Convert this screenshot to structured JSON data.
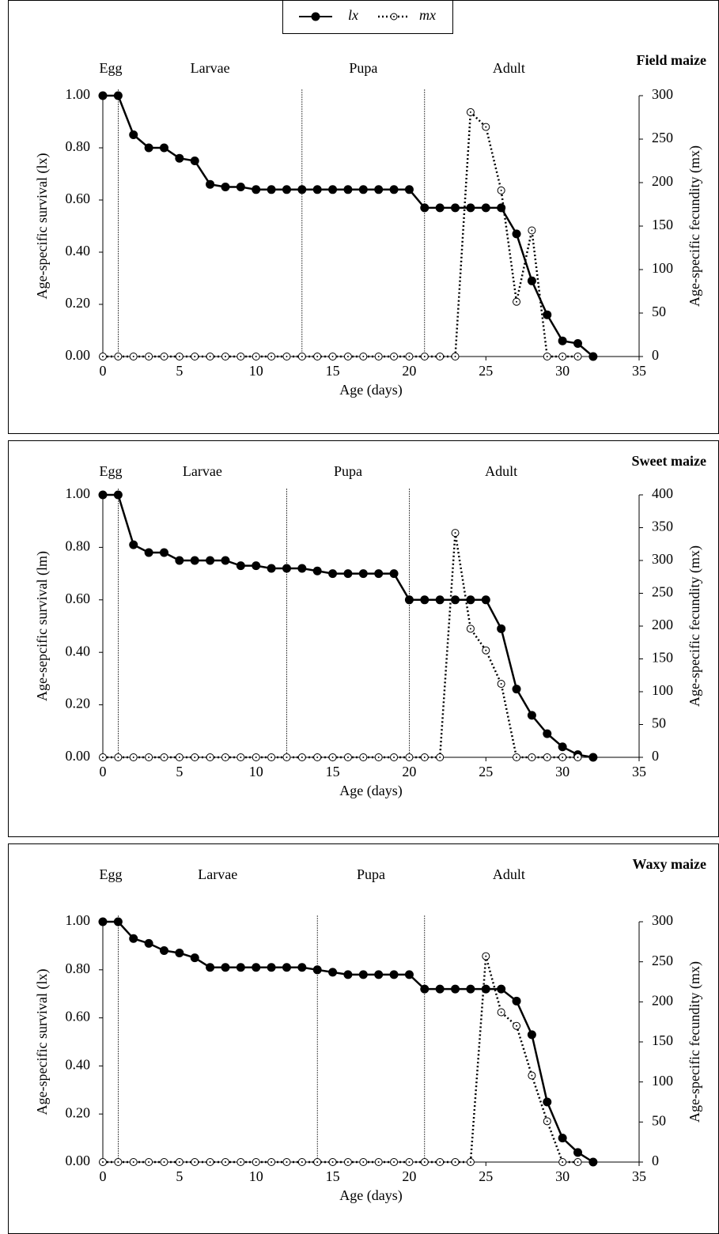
{
  "chart_data": [
    {
      "type": "line",
      "title": "Field maize",
      "xlabel": "Age (days)",
      "ylabel": "Age-specific survival (lx)",
      "y2label": "Age-specific fecundity (mx)",
      "stages": [
        "Egg",
        "Larvae",
        "Pupa",
        "Adult"
      ],
      "stage_boundaries": [
        1,
        13,
        21
      ],
      "xlim": [
        0,
        35
      ],
      "xticks": [
        0,
        5,
        10,
        15,
        20,
        25,
        30,
        35
      ],
      "ylim": [
        0,
        1
      ],
      "yticks": [
        {
          "value": 0,
          "label": "0.00"
        },
        {
          "value": 0.2,
          "label": "0.20"
        },
        {
          "value": 0.4,
          "label": "0.40"
        },
        {
          "value": 0.6,
          "label": "0.60"
        },
        {
          "value": 0.8,
          "label": "0.80"
        },
        {
          "value": 1,
          "label": "1.00"
        }
      ],
      "y2lim": [
        0,
        300
      ],
      "y2ticks": [
        0,
        50,
        100,
        150,
        200,
        250,
        300
      ],
      "series": [
        {
          "name": "lx",
          "color": "#000000",
          "x": [
            0,
            1,
            2,
            3,
            4,
            5,
            6,
            7,
            8,
            9,
            10,
            11,
            12,
            13,
            14,
            15,
            16,
            17,
            18,
            19,
            20,
            21,
            22,
            23,
            24,
            25,
            26,
            27,
            28,
            29,
            30,
            31,
            32
          ],
          "values": [
            1,
            1,
            0.85,
            0.8,
            0.8,
            0.76,
            0.75,
            0.66,
            0.65,
            0.65,
            0.64,
            0.64,
            0.64,
            0.64,
            0.64,
            0.64,
            0.64,
            0.64,
            0.64,
            0.64,
            0.64,
            0.57,
            0.57,
            0.57,
            0.57,
            0.57,
            0.57,
            0.47,
            0.29,
            0.16,
            0.06,
            0.05,
            0
          ]
        },
        {
          "name": "mx",
          "color": "#000000",
          "axis": "y2",
          "x": [
            0,
            1,
            2,
            3,
            4,
            5,
            6,
            7,
            8,
            9,
            10,
            11,
            12,
            13,
            14,
            15,
            16,
            17,
            18,
            19,
            20,
            21,
            22,
            23,
            24,
            25,
            26,
            27,
            28,
            29,
            30,
            31
          ],
          "values": [
            0,
            0,
            0,
            0,
            0,
            0,
            0,
            0,
            0,
            0,
            0,
            0,
            0,
            0,
            0,
            0,
            0,
            0,
            0,
            0,
            0,
            0,
            0,
            0,
            281,
            264,
            191,
            63,
            145,
            0,
            0,
            0
          ]
        }
      ]
    },
    {
      "type": "line",
      "title": "Sweet maize",
      "xlabel": "Age (days)",
      "ylabel": "Age-sepcific survival (lm)",
      "y2label": "Age-specific fecundity (mx)",
      "stages": [
        "Egg",
        "Larvae",
        "Pupa",
        "Adult"
      ],
      "stage_boundaries": [
        1,
        12,
        20
      ],
      "xlim": [
        0,
        35
      ],
      "xticks": [
        0,
        5,
        10,
        15,
        20,
        25,
        30,
        35
      ],
      "ylim": [
        0,
        1
      ],
      "yticks": [
        {
          "value": 0,
          "label": "0.00"
        },
        {
          "value": 0.2,
          "label": "0.20"
        },
        {
          "value": 0.4,
          "label": "0.40"
        },
        {
          "value": 0.6,
          "label": "0.60"
        },
        {
          "value": 0.8,
          "label": "0.80"
        },
        {
          "value": 1,
          "label": "1.00"
        }
      ],
      "y2lim": [
        0,
        400
      ],
      "y2ticks": [
        0,
        50,
        100,
        150,
        200,
        250,
        300,
        350,
        400
      ],
      "series": [
        {
          "name": "lx",
          "color": "#000000",
          "x": [
            0,
            1,
            2,
            3,
            4,
            5,
            6,
            7,
            8,
            9,
            10,
            11,
            12,
            13,
            14,
            15,
            16,
            17,
            18,
            19,
            20,
            21,
            22,
            23,
            24,
            25,
            26,
            27,
            28,
            29,
            30,
            31,
            32
          ],
          "values": [
            1,
            1,
            0.81,
            0.78,
            0.78,
            0.75,
            0.75,
            0.75,
            0.75,
            0.73,
            0.73,
            0.72,
            0.72,
            0.72,
            0.71,
            0.7,
            0.7,
            0.7,
            0.7,
            0.7,
            0.6,
            0.6,
            0.6,
            0.6,
            0.6,
            0.6,
            0.49,
            0.26,
            0.16,
            0.09,
            0.04,
            0.01,
            0
          ]
        },
        {
          "name": "mx",
          "color": "#000000",
          "axis": "y2",
          "x": [
            0,
            1,
            2,
            3,
            4,
            5,
            6,
            7,
            8,
            9,
            10,
            11,
            12,
            13,
            14,
            15,
            16,
            17,
            18,
            19,
            20,
            21,
            22,
            23,
            24,
            25,
            26,
            27,
            28,
            29,
            30,
            31
          ],
          "values": [
            0,
            0,
            0,
            0,
            0,
            0,
            0,
            0,
            0,
            0,
            0,
            0,
            0,
            0,
            0,
            0,
            0,
            0,
            0,
            0,
            0,
            0,
            0,
            342,
            196,
            163,
            112,
            0,
            0,
            0,
            0,
            0
          ]
        }
      ]
    },
    {
      "type": "line",
      "title": "Waxy maize",
      "xlabel": "Age (days)",
      "ylabel": "Age-specific survival (lx)",
      "y2label": "Age-specific fecundity (mx)",
      "stages": [
        "Egg",
        "Larvae",
        "Pupa",
        "Adult"
      ],
      "stage_boundaries": [
        1,
        14,
        21
      ],
      "xlim": [
        0,
        35
      ],
      "xticks": [
        0,
        5,
        10,
        15,
        20,
        25,
        30,
        35
      ],
      "ylim": [
        0,
        1
      ],
      "yticks": [
        {
          "value": 0,
          "label": "0.00"
        },
        {
          "value": 0.2,
          "label": "0.20"
        },
        {
          "value": 0.4,
          "label": "0.40"
        },
        {
          "value": 0.6,
          "label": "0.60"
        },
        {
          "value": 0.8,
          "label": "0.80"
        },
        {
          "value": 1,
          "label": "1.00"
        }
      ],
      "y2lim": [
        0,
        300
      ],
      "y2ticks": [
        0,
        50,
        100,
        150,
        200,
        250,
        300
      ],
      "series": [
        {
          "name": "lx",
          "color": "#000000",
          "x": [
            0,
            1,
            2,
            3,
            4,
            5,
            6,
            7,
            8,
            9,
            10,
            11,
            12,
            13,
            14,
            15,
            16,
            17,
            18,
            19,
            20,
            21,
            22,
            23,
            24,
            25,
            26,
            27,
            28,
            29,
            30,
            31,
            32
          ],
          "values": [
            1,
            1,
            0.93,
            0.91,
            0.88,
            0.87,
            0.85,
            0.81,
            0.81,
            0.81,
            0.81,
            0.81,
            0.81,
            0.81,
            0.8,
            0.79,
            0.78,
            0.78,
            0.78,
            0.78,
            0.78,
            0.72,
            0.72,
            0.72,
            0.72,
            0.72,
            0.72,
            0.67,
            0.53,
            0.25,
            0.1,
            0.04,
            0
          ]
        },
        {
          "name": "mx",
          "color": "#000000",
          "axis": "y2",
          "x": [
            0,
            1,
            2,
            3,
            4,
            5,
            6,
            7,
            8,
            9,
            10,
            11,
            12,
            13,
            14,
            15,
            16,
            17,
            18,
            19,
            20,
            21,
            22,
            23,
            24,
            25,
            26,
            27,
            28,
            29,
            30,
            31
          ],
          "values": [
            0,
            0,
            0,
            0,
            0,
            0,
            0,
            0,
            0,
            0,
            0,
            0,
            0,
            0,
            0,
            0,
            0,
            0,
            0,
            0,
            0,
            0,
            0,
            0,
            0,
            257,
            187,
            170,
            108,
            51,
            0,
            0
          ]
        }
      ]
    }
  ]
}
